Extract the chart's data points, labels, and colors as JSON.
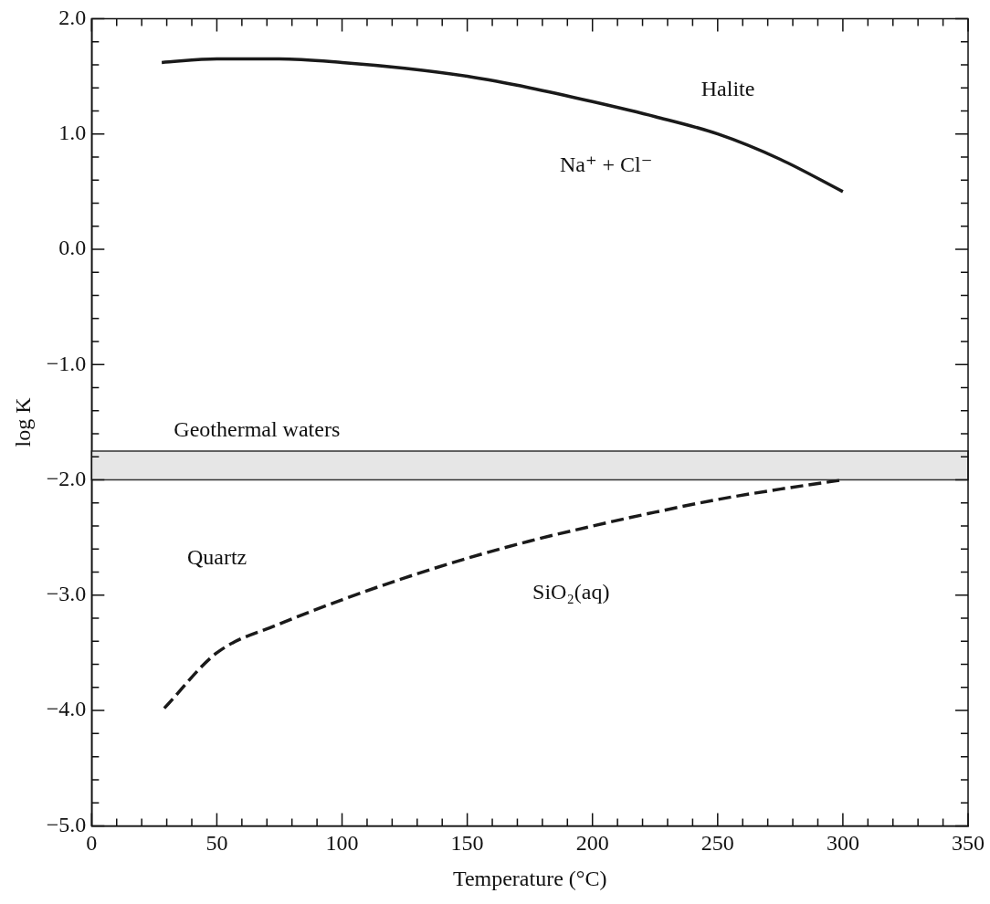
{
  "chart_data": {
    "type": "line",
    "xlabel": "Temperature (°C)",
    "ylabel": "log K",
    "xlim": [
      0,
      350
    ],
    "ylim": [
      -5,
      2
    ],
    "xticks": [
      0,
      {
        "value": 10,
        "label": null
      },
      {
        "value": 20,
        "label": null
      },
      {
        "value": 30,
        "label": null
      },
      {
        "value": 40,
        "label": null
      },
      50,
      {
        "value": 60,
        "label": null
      },
      {
        "value": 70,
        "label": null
      },
      {
        "value": 80,
        "label": null
      },
      {
        "value": 90,
        "label": null
      },
      100,
      {
        "value": 110,
        "label": null
      },
      {
        "value": 120,
        "label": null
      },
      {
        "value": 130,
        "label": null
      },
      {
        "value": 140,
        "label": null
      },
      150,
      {
        "value": 160,
        "label": null
      },
      {
        "value": 170,
        "label": null
      },
      {
        "value": 180,
        "label": null
      },
      {
        "value": 190,
        "label": null
      },
      200,
      {
        "value": 210,
        "label": null
      },
      {
        "value": 220,
        "label": null
      },
      {
        "value": 230,
        "label": null
      },
      {
        "value": 240,
        "label": null
      },
      250,
      {
        "value": 260,
        "label": null
      },
      {
        "value": 270,
        "label": null
      },
      {
        "value": 280,
        "label": null
      },
      {
        "value": 290,
        "label": null
      },
      300,
      {
        "value": 310,
        "label": null
      },
      {
        "value": 320,
        "label": null
      },
      {
        "value": 330,
        "label": null
      },
      {
        "value": 340,
        "label": null
      },
      350
    ],
    "yticks": [
      {
        "value": -5,
        "label": "−5.0"
      },
      {
        "value": -4.8,
        "label": null
      },
      {
        "value": -4.6,
        "label": null
      },
      {
        "value": -4.4,
        "label": null
      },
      {
        "value": -4.2,
        "label": null
      },
      {
        "value": -4,
        "label": "−4.0"
      },
      {
        "value": -3.8,
        "label": null
      },
      {
        "value": -3.6,
        "label": null
      },
      {
        "value": -3.4,
        "label": null
      },
      {
        "value": -3.2,
        "label": null
      },
      {
        "value": -3,
        "label": "−3.0"
      },
      {
        "value": -2.8,
        "label": null
      },
      {
        "value": -2.6,
        "label": null
      },
      {
        "value": -2.4,
        "label": null
      },
      {
        "value": -2.2,
        "label": null
      },
      {
        "value": -2,
        "label": "−2.0"
      },
      {
        "value": -1.8,
        "label": null
      },
      {
        "value": -1.6,
        "label": null
      },
      {
        "value": -1.4,
        "label": null
      },
      {
        "value": -1.2,
        "label": null
      },
      {
        "value": -1,
        "label": "−1.0"
      },
      {
        "value": -0.8,
        "label": null
      },
      {
        "value": -0.6,
        "label": null
      },
      {
        "value": -0.4,
        "label": null
      },
      {
        "value": -0.2,
        "label": null
      },
      {
        "value": 0,
        "label": "0.0"
      },
      {
        "value": 0.2,
        "label": null
      },
      {
        "value": 0.4,
        "label": null
      },
      {
        "value": 0.6,
        "label": null
      },
      {
        "value": 0.8,
        "label": null
      },
      {
        "value": 1,
        "label": "1.0"
      },
      {
        "value": 1.2,
        "label": null
      },
      {
        "value": 1.4,
        "label": null
      },
      {
        "value": 1.6,
        "label": null
      },
      {
        "value": 1.8,
        "label": null
      },
      {
        "value": 2,
        "label": "2.0"
      }
    ],
    "grid": false,
    "legend": false,
    "marker": "none",
    "series": [
      {
        "color": "#1a1a1a",
        "line_style": "solid",
        "x": [
          28,
          50,
          75,
          100,
          125,
          150,
          175,
          200,
          225,
          250,
          275,
          300
        ],
        "values": [
          1.62,
          1.65,
          1.65,
          1.62,
          1.57,
          1.5,
          1.4,
          1.28,
          1.15,
          1.0,
          0.78,
          0.5
        ]
      },
      {
        "color": "#1a1a1a",
        "line_style": "dashed",
        "x": [
          29,
          50,
          75,
          100,
          125,
          150,
          175,
          200,
          225,
          250,
          275,
          300
        ],
        "values": [
          -3.98,
          -3.5,
          -3.25,
          -3.04,
          -2.85,
          -2.68,
          -2.53,
          -2.4,
          -2.28,
          -2.17,
          -2.08,
          -2.0
        ]
      }
    ],
    "bands": [
      {
        "axis": "y",
        "from": -2,
        "to": -1.75,
        "label": "Geothermal waters",
        "color": "#e6e6e6"
      }
    ],
    "annotations": [
      "Halite",
      "Na⁺ + Cl⁻",
      "Quartz",
      "SiO₂(aq)"
    ]
  }
}
